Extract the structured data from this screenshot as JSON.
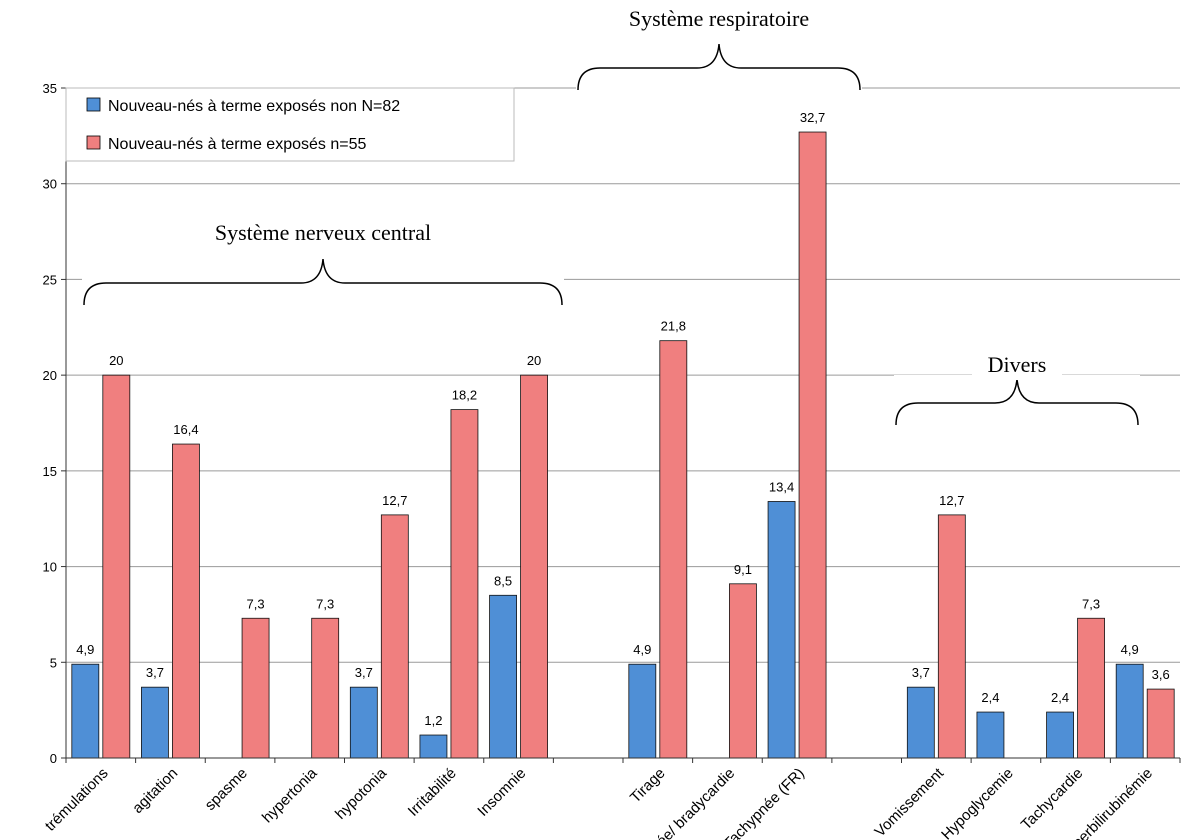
{
  "chart_data": {
    "type": "bar",
    "categories": [
      "trémulations",
      "agitation",
      "spasme",
      "hypertonia",
      "hypotonia",
      "Irritabilité",
      "Insomnie",
      "",
      "Tirage",
      "Apnée/ bradycardie",
      "Tachypnée (FR)",
      "",
      "Vomissement",
      "Hypoglycemie",
      "Tachycardie",
      "Hyperbilirubinémie"
    ],
    "series": [
      {
        "name": "Nouveau-nés à terme exposés non N=82",
        "color": "#4f8fd6",
        "values": [
          4.9,
          3.7,
          null,
          null,
          3.7,
          1.2,
          8.5,
          null,
          4.9,
          null,
          13.4,
          null,
          3.7,
          2.4,
          2.4,
          4.9
        ],
        "labels": [
          "4,9",
          "3,7",
          "",
          "",
          "3,7",
          "1,2",
          "8,5",
          "",
          "4,9",
          "",
          "13,4",
          "",
          "3,7",
          "2,4",
          "2,4",
          "4,9"
        ]
      },
      {
        "name": "Nouveau-nés  à terme exposés n=55",
        "color": "#f07f7f",
        "values": [
          20,
          16.4,
          7.3,
          7.3,
          12.7,
          18.2,
          20,
          null,
          21.8,
          9.1,
          32.7,
          null,
          12.7,
          null,
          7.3,
          3.6
        ],
        "labels": [
          "20",
          "16,4",
          "7,3",
          "7,3",
          "12,7",
          "18,2",
          "20",
          "",
          "21,8",
          "9,1",
          "32,7",
          "",
          "12,7",
          "",
          "7,3",
          "3,6"
        ]
      }
    ],
    "ylim": [
      0,
      35
    ],
    "yticks": [
      "0",
      "5",
      "10",
      "15",
      "20",
      "25",
      "30",
      "35"
    ],
    "grid": true,
    "legend_position": "top-left",
    "groups": [
      {
        "title": "Système nerveux central",
        "from": 0,
        "to": 6
      },
      {
        "title": "Système respiratoire",
        "from": 8,
        "to": 10
      },
      {
        "title": "Divers",
        "from": 12,
        "to": 15
      }
    ]
  }
}
